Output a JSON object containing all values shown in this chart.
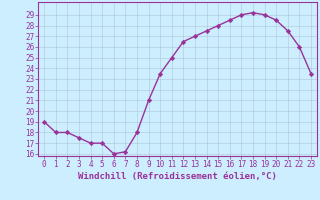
{
  "x": [
    0,
    1,
    2,
    3,
    4,
    5,
    6,
    7,
    8,
    9,
    10,
    11,
    12,
    13,
    14,
    15,
    16,
    17,
    18,
    19,
    20,
    21,
    22,
    23
  ],
  "y": [
    19,
    18,
    18,
    17.5,
    17,
    17,
    16,
    16.2,
    18,
    21,
    23.5,
    25,
    26.5,
    27,
    27.5,
    28,
    28.5,
    29,
    29.2,
    29,
    28.5,
    27.5,
    26,
    23.5
  ],
  "line_color": "#993399",
  "marker": "D",
  "marker_size": 2.2,
  "bg_color": "#cceeff",
  "grid_color": "#aabbcc",
  "xlabel": "Windchill (Refroidissement éolien,°C)",
  "xlabel_color": "#993399",
  "tick_color": "#993399",
  "ylim_min": 16,
  "ylim_max": 30,
  "xlim_min": -0.5,
  "xlim_max": 23.5,
  "yticks": [
    16,
    17,
    18,
    19,
    20,
    21,
    22,
    23,
    24,
    25,
    26,
    27,
    28,
    29
  ],
  "xticks": [
    0,
    1,
    2,
    3,
    4,
    5,
    6,
    7,
    8,
    9,
    10,
    11,
    12,
    13,
    14,
    15,
    16,
    17,
    18,
    19,
    20,
    21,
    22,
    23
  ],
  "border_color": "#993399",
  "font_size_label": 6.5,
  "font_size_tick": 5.5,
  "linewidth": 1.0
}
